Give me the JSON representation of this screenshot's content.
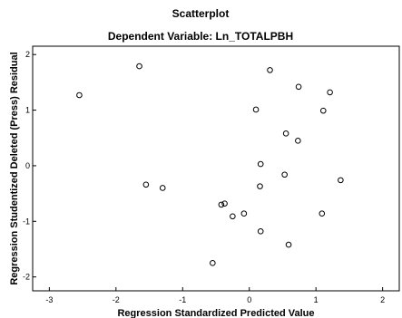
{
  "chart_data": {
    "type": "scatter",
    "title": "Scatterplot",
    "subtitle": "Dependent Variable: Ln_TOTALPBH",
    "xlabel": "Regression Standardized Predicted Value",
    "ylabel": "Regression Studentized Deleted (Press) Residual",
    "xlim": [
      -3.25,
      2.25
    ],
    "ylim": [
      -2.25,
      2.15
    ],
    "xticks": [
      -3,
      -2,
      -1,
      0,
      1,
      2
    ],
    "yticks": [
      -2,
      -1,
      0,
      1,
      2
    ],
    "grid": false,
    "legend": "none",
    "marker_color": "#000000",
    "background_color": "#ffffff",
    "points": [
      {
        "x": -2.55,
        "y": 1.27
      },
      {
        "x": -1.65,
        "y": 1.79
      },
      {
        "x": -1.55,
        "y": -0.34
      },
      {
        "x": -1.3,
        "y": -0.4
      },
      {
        "x": -0.55,
        "y": -1.75
      },
      {
        "x": -0.42,
        "y": -0.7
      },
      {
        "x": -0.37,
        "y": -0.68
      },
      {
        "x": -0.25,
        "y": -0.91
      },
      {
        "x": -0.08,
        "y": -0.86
      },
      {
        "x": 0.1,
        "y": 1.01
      },
      {
        "x": 0.16,
        "y": -0.37
      },
      {
        "x": 0.17,
        "y": 0.03
      },
      {
        "x": 0.17,
        "y": -1.18
      },
      {
        "x": 0.31,
        "y": 1.72
      },
      {
        "x": 0.53,
        "y": -0.16
      },
      {
        "x": 0.55,
        "y": 0.58
      },
      {
        "x": 0.59,
        "y": -1.42
      },
      {
        "x": 0.73,
        "y": 0.45
      },
      {
        "x": 0.74,
        "y": 1.42
      },
      {
        "x": 1.09,
        "y": -0.86
      },
      {
        "x": 1.11,
        "y": 0.99
      },
      {
        "x": 1.21,
        "y": 1.32
      },
      {
        "x": 1.37,
        "y": -0.26
      }
    ]
  }
}
